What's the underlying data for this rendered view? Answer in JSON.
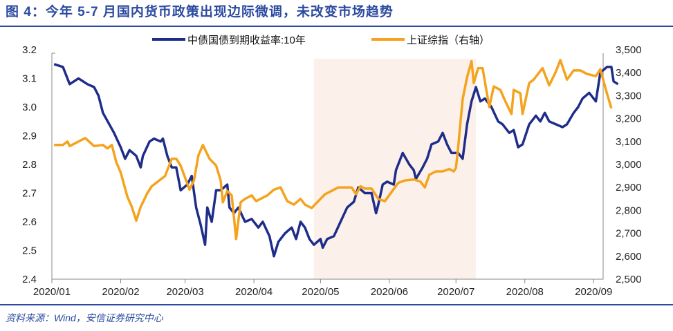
{
  "chart_data": {
    "type": "line",
    "title": "图 4：今年 5-7 月国内货币政策出现边际微调，未改变市场趋势",
    "source": "资料来源：Wind，安信证券研究中心",
    "x_ticks": [
      "2020/01",
      "2020/02",
      "2020/03",
      "2020/04",
      "2020/05",
      "2020/06",
      "2020/07",
      "2020/08",
      "2020/09"
    ],
    "y_left": {
      "range": [
        2.4,
        3.2
      ],
      "ticks": [
        "2.4",
        "2.5",
        "2.6",
        "2.7",
        "2.8",
        "2.9",
        "3.0",
        "3.1",
        "3.2"
      ]
    },
    "y_right": {
      "range": [
        2500,
        3500
      ],
      "ticks": [
        "2,500",
        "2,600",
        "2,700",
        "2,800",
        "2,900",
        "3,000",
        "3,100",
        "3,200",
        "3,300",
        "3,400",
        "3,500"
      ]
    },
    "grid": false,
    "legend_position": "top",
    "shaded_period": [
      "2020-04-28",
      "2020-07-10"
    ],
    "shade_color": "#fbf1ea",
    "series": [
      {
        "name": "中债国债到期收益率:10年",
        "axis": "left",
        "color": "#1f2d8a",
        "points": [
          [
            "2020-01-02",
            3.15
          ],
          [
            "2020-01-06",
            3.14
          ],
          [
            "2020-01-09",
            3.08
          ],
          [
            "2020-01-13",
            3.1
          ],
          [
            "2020-01-17",
            3.08
          ],
          [
            "2020-01-20",
            3.07
          ],
          [
            "2020-01-22",
            3.04
          ],
          [
            "2020-01-24",
            2.98
          ],
          [
            "2020-01-29",
            2.91
          ],
          [
            "2020-02-01",
            2.86
          ],
          [
            "2020-02-03",
            2.82
          ],
          [
            "2020-02-05",
            2.85
          ],
          [
            "2020-02-08",
            2.83
          ],
          [
            "2020-02-10",
            2.79
          ],
          [
            "2020-02-11",
            2.83
          ],
          [
            "2020-02-14",
            2.88
          ],
          [
            "2020-02-16",
            2.89
          ],
          [
            "2020-02-19",
            2.88
          ],
          [
            "2020-02-20",
            2.89
          ],
          [
            "2020-02-22",
            2.83
          ],
          [
            "2020-02-24",
            2.79
          ],
          [
            "2020-02-26",
            2.79
          ],
          [
            "2020-02-28",
            2.71
          ],
          [
            "2020-03-02",
            2.73
          ],
          [
            "2020-03-04",
            2.76
          ],
          [
            "2020-03-06",
            2.65
          ],
          [
            "2020-03-08",
            2.59
          ],
          [
            "2020-03-10",
            2.52
          ],
          [
            "2020-03-11",
            2.65
          ],
          [
            "2020-03-13",
            2.6
          ],
          [
            "2020-03-15",
            2.71
          ],
          [
            "2020-03-17",
            2.71
          ],
          [
            "2020-03-20",
            2.73
          ],
          [
            "2020-03-21",
            2.65
          ],
          [
            "2020-03-23",
            2.63
          ],
          [
            "2020-03-25",
            2.65
          ],
          [
            "2020-03-28",
            2.6
          ],
          [
            "2020-03-31",
            2.61
          ],
          [
            "2020-04-03",
            2.58
          ],
          [
            "2020-04-05",
            2.6
          ],
          [
            "2020-04-08",
            2.55
          ],
          [
            "2020-04-10",
            2.48
          ],
          [
            "2020-04-12",
            2.53
          ],
          [
            "2020-04-15",
            2.56
          ],
          [
            "2020-04-18",
            2.58
          ],
          [
            "2020-04-20",
            2.54
          ],
          [
            "2020-04-22",
            2.6
          ],
          [
            "2020-04-24",
            2.58
          ],
          [
            "2020-04-26",
            2.54
          ],
          [
            "2020-04-28",
            2.52
          ],
          [
            "2020-05-01",
            2.54
          ],
          [
            "2020-05-02",
            2.51
          ],
          [
            "2020-05-04",
            2.54
          ],
          [
            "2020-05-07",
            2.55
          ],
          [
            "2020-05-10",
            2.6
          ],
          [
            "2020-05-13",
            2.65
          ],
          [
            "2020-05-16",
            2.67
          ],
          [
            "2020-05-18",
            2.72
          ],
          [
            "2020-05-21",
            2.7
          ],
          [
            "2020-05-24",
            2.7
          ],
          [
            "2020-05-26",
            2.63
          ],
          [
            "2020-05-27",
            2.66
          ],
          [
            "2020-05-29",
            2.73
          ],
          [
            "2020-05-31",
            2.74
          ],
          [
            "2020-06-03",
            2.73
          ],
          [
            "2020-06-04",
            2.78
          ],
          [
            "2020-06-07",
            2.84
          ],
          [
            "2020-06-10",
            2.8
          ],
          [
            "2020-06-12",
            2.78
          ],
          [
            "2020-06-13",
            2.75
          ],
          [
            "2020-06-16",
            2.79
          ],
          [
            "2020-06-18",
            2.82
          ],
          [
            "2020-06-20",
            2.87
          ],
          [
            "2020-06-23",
            2.88
          ],
          [
            "2020-06-25",
            2.91
          ],
          [
            "2020-06-27",
            2.87
          ],
          [
            "2020-06-29",
            2.84
          ],
          [
            "2020-07-02",
            2.84
          ],
          [
            "2020-07-04",
            2.82
          ],
          [
            "2020-07-06",
            2.94
          ],
          [
            "2020-07-08",
            3.02
          ],
          [
            "2020-07-10",
            3.07
          ],
          [
            "2020-07-12",
            3.02
          ],
          [
            "2020-07-14",
            3.03
          ],
          [
            "2020-07-17",
            3.0
          ],
          [
            "2020-07-20",
            2.95
          ],
          [
            "2020-07-22",
            2.94
          ],
          [
            "2020-07-25",
            2.91
          ],
          [
            "2020-07-27",
            2.92
          ],
          [
            "2020-07-29",
            2.86
          ],
          [
            "2020-07-31",
            2.87
          ],
          [
            "2020-08-03",
            2.94
          ],
          [
            "2020-08-06",
            2.97
          ],
          [
            "2020-08-08",
            2.95
          ],
          [
            "2020-08-10",
            2.98
          ],
          [
            "2020-08-12",
            2.95
          ],
          [
            "2020-08-15",
            2.94
          ],
          [
            "2020-08-18",
            2.93
          ],
          [
            "2020-08-20",
            2.94
          ],
          [
            "2020-08-23",
            2.98
          ],
          [
            "2020-08-25",
            3.0
          ],
          [
            "2020-08-27",
            3.03
          ],
          [
            "2020-08-30",
            3.05
          ],
          [
            "2020-09-02",
            3.02
          ],
          [
            "2020-09-04",
            3.12
          ],
          [
            "2020-09-07",
            3.14
          ],
          [
            "2020-09-09",
            3.14
          ],
          [
            "2020-09-10",
            3.09
          ],
          [
            "2020-09-12",
            3.08
          ]
        ]
      },
      {
        "name": "上证综指（右轴）",
        "axis": "right",
        "color": "#f5a21c",
        "points": [
          [
            "2020-01-02",
            3085
          ],
          [
            "2020-01-06",
            3085
          ],
          [
            "2020-01-08",
            3100
          ],
          [
            "2020-01-09",
            3080
          ],
          [
            "2020-01-13",
            3100
          ],
          [
            "2020-01-16",
            3115
          ],
          [
            "2020-01-20",
            3080
          ],
          [
            "2020-01-24",
            3085
          ],
          [
            "2020-01-26",
            3070
          ],
          [
            "2020-01-28",
            3085
          ],
          [
            "2020-01-30",
            3010
          ],
          [
            "2020-02-01",
            2965
          ],
          [
            "2020-02-04",
            2860
          ],
          [
            "2020-02-06",
            2815
          ],
          [
            "2020-02-08",
            2755
          ],
          [
            "2020-02-10",
            2815
          ],
          [
            "2020-02-13",
            2875
          ],
          [
            "2020-02-15",
            2905
          ],
          [
            "2020-02-17",
            2920
          ],
          [
            "2020-02-21",
            2950
          ],
          [
            "2020-02-24",
            3025
          ],
          [
            "2020-02-26",
            3025
          ],
          [
            "2020-02-28",
            2995
          ],
          [
            "2020-03-03",
            2890
          ],
          [
            "2020-03-05",
            2930
          ],
          [
            "2020-03-07",
            3040
          ],
          [
            "2020-03-09",
            3085
          ],
          [
            "2020-03-12",
            3025
          ],
          [
            "2020-03-15",
            2995
          ],
          [
            "2020-03-17",
            2930
          ],
          [
            "2020-03-18",
            2835
          ],
          [
            "2020-03-20",
            2885
          ],
          [
            "2020-03-22",
            2865
          ],
          [
            "2020-03-24",
            2675
          ],
          [
            "2020-03-26",
            2835
          ],
          [
            "2020-03-28",
            2850
          ],
          [
            "2020-03-31",
            2865
          ],
          [
            "2020-04-02",
            2840
          ],
          [
            "2020-04-04",
            2850
          ],
          [
            "2020-04-07",
            2865
          ],
          [
            "2020-04-10",
            2890
          ],
          [
            "2020-04-13",
            2900
          ],
          [
            "2020-04-16",
            2840
          ],
          [
            "2020-04-19",
            2825
          ],
          [
            "2020-04-22",
            2850
          ],
          [
            "2020-04-24",
            2825
          ],
          [
            "2020-04-27",
            2810
          ],
          [
            "2020-04-30",
            2840
          ],
          [
            "2020-05-03",
            2870
          ],
          [
            "2020-05-06",
            2885
          ],
          [
            "2020-05-09",
            2900
          ],
          [
            "2020-05-12",
            2900
          ],
          [
            "2020-05-15",
            2900
          ],
          [
            "2020-05-17",
            2870
          ],
          [
            "2020-05-19",
            2905
          ],
          [
            "2020-05-21",
            2895
          ],
          [
            "2020-05-24",
            2895
          ],
          [
            "2020-05-27",
            2850
          ],
          [
            "2020-05-30",
            2840
          ],
          [
            "2020-06-02",
            2880
          ],
          [
            "2020-06-05",
            2920
          ],
          [
            "2020-06-08",
            2930
          ],
          [
            "2020-06-12",
            2935
          ],
          [
            "2020-06-15",
            2925
          ],
          [
            "2020-06-17",
            2900
          ],
          [
            "2020-06-19",
            2955
          ],
          [
            "2020-06-22",
            2970
          ],
          [
            "2020-06-25",
            2970
          ],
          [
            "2020-06-28",
            2980
          ],
          [
            "2020-06-30",
            2970
          ],
          [
            "2020-07-01",
            2985
          ],
          [
            "2020-07-02",
            3075
          ],
          [
            "2020-07-04",
            3285
          ],
          [
            "2020-07-06",
            3380
          ],
          [
            "2020-07-08",
            3450
          ],
          [
            "2020-07-09",
            3355
          ],
          [
            "2020-07-11",
            3420
          ],
          [
            "2020-07-13",
            3420
          ],
          [
            "2020-07-16",
            3250
          ],
          [
            "2020-07-18",
            3340
          ],
          [
            "2020-07-21",
            3325
          ],
          [
            "2020-07-23",
            3280
          ],
          [
            "2020-07-26",
            3220
          ],
          [
            "2020-07-27",
            3325
          ],
          [
            "2020-07-30",
            3310
          ],
          [
            "2020-07-31",
            3220
          ],
          [
            "2020-08-03",
            3355
          ],
          [
            "2020-08-05",
            3370
          ],
          [
            "2020-08-09",
            3420
          ],
          [
            "2020-08-12",
            3345
          ],
          [
            "2020-08-15",
            3405
          ],
          [
            "2020-08-17",
            3455
          ],
          [
            "2020-08-20",
            3370
          ],
          [
            "2020-08-23",
            3410
          ],
          [
            "2020-08-26",
            3410
          ],
          [
            "2020-08-29",
            3395
          ],
          [
            "2020-09-02",
            3385
          ],
          [
            "2020-09-04",
            3415
          ],
          [
            "2020-09-07",
            3310
          ],
          [
            "2020-09-09",
            3245
          ]
        ]
      }
    ]
  }
}
